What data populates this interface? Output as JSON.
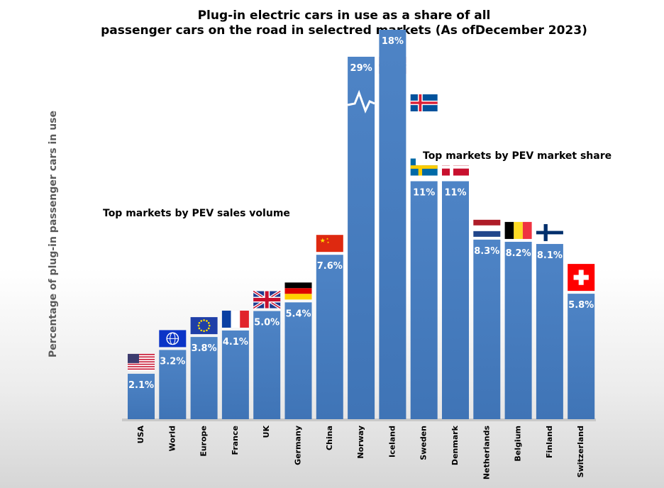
{
  "chart_data": {
    "type": "bar",
    "title_line1": "Plug-in electric cars in use as a share of all",
    "title_line2": "passenger cars on the road in selectred markets  (As ofDecember 2023)",
    "ylabel": "Percentage of plug-in passenger cars  in use",
    "categories": [
      "USA",
      "World",
      "Europe",
      "France",
      "UK",
      "Germany",
      "China",
      "Norway",
      "Iceland",
      "Sweden",
      "Denmark",
      "Netherlands",
      "Belgium",
      "Finland",
      "Switzerland"
    ],
    "values": [
      2.1,
      3.2,
      3.8,
      4.1,
      5.0,
      5.4,
      7.6,
      29,
      18,
      11,
      11,
      8.3,
      8.2,
      8.1,
      5.8
    ],
    "value_labels": [
      "2.1%",
      "3.2%",
      "3.8%",
      "4.1%",
      "5.0%",
      "5.4%",
      "7.6%",
      "29%",
      "18%",
      "11%",
      "11%",
      "8.3%",
      "8.2%",
      "8.1%",
      "5.8%"
    ],
    "flags": [
      "us-flag-icon",
      "globe-flag-icon",
      "eu-flag-icon",
      "france-flag-icon",
      "uk-flag-icon",
      "germany-flag-icon",
      "china-flag-icon",
      "norway-flag-icon",
      "iceland-flag-icon",
      "sweden-flag-icon",
      "denmark-flag-icon",
      "netherlands-flag-icon",
      "belgium-flag-icon",
      "finland-flag-icon",
      "switzerland-flag-icon"
    ],
    "axis_break_on": "Norway",
    "bar_color": "#4a7fc1",
    "annotations": {
      "sales_volume": "Top markets by PEV sales volume",
      "market_share": "Top markets by PEV market share"
    }
  }
}
